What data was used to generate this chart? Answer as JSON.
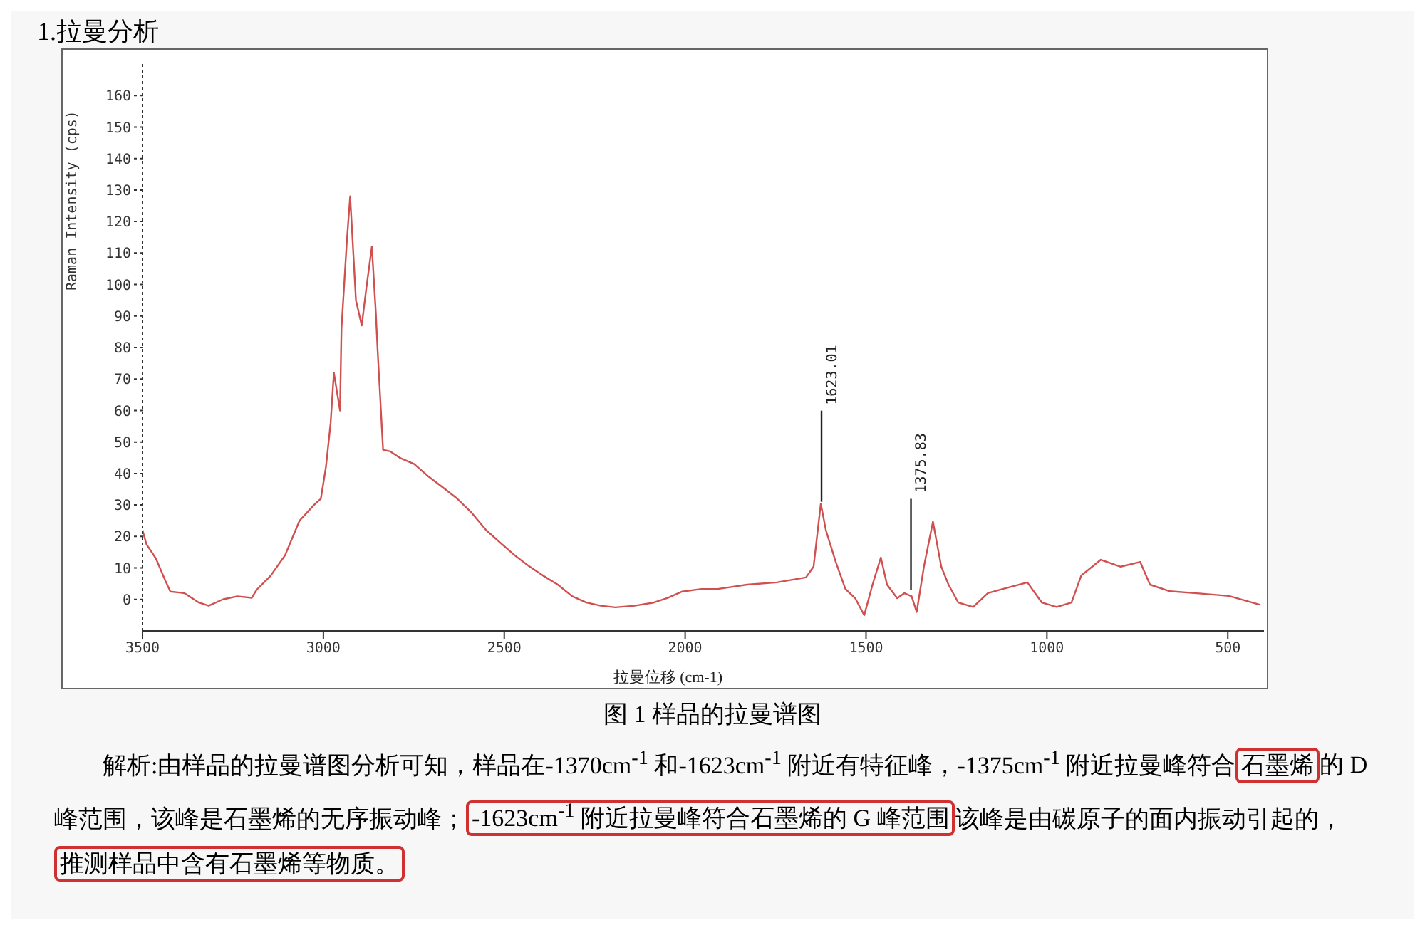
{
  "chart_data": {
    "type": "line",
    "title": "1.拉曼分析",
    "xlabel": "拉曼位移 (cm-1)",
    "ylabel": "Raman Intensity (cps)",
    "x": [
      3500,
      3489,
      3463,
      3437,
      3423,
      3384,
      3344,
      3317,
      3278,
      3238,
      3198,
      3185,
      3146,
      3106,
      3066,
      3026,
      3007,
      2993,
      2980,
      2971,
      2954,
      2950,
      2935,
      2926,
      2910,
      2894,
      2880,
      2866,
      2855,
      2850,
      2835,
      2815,
      2789,
      2749,
      2709,
      2669,
      2630,
      2590,
      2550,
      2511,
      2471,
      2431,
      2392,
      2352,
      2312,
      2273,
      2233,
      2193,
      2140,
      2087,
      2048,
      2008,
      1955,
      1910,
      1829,
      1747,
      1666,
      1645,
      1625,
      1611,
      1584,
      1557,
      1530,
      1505,
      1482,
      1459,
      1442,
      1414,
      1394,
      1374,
      1360,
      1340,
      1315,
      1292,
      1272,
      1245,
      1204,
      1163,
      1122,
      1054,
      1014,
      973,
      932,
      905,
      851,
      796,
      742,
      715,
      660,
      579,
      497,
      410
    ],
    "series": [
      {
        "color": "#d05050",
        "values": [
          22,
          17.5,
          13,
          6,
          2.5,
          2,
          -1,
          -2,
          0,
          1,
          0.5,
          3,
          7.5,
          14,
          25,
          30,
          32,
          42,
          56,
          72,
          60,
          86,
          114,
          128,
          95,
          87,
          100,
          112,
          91,
          79,
          47.5,
          47,
          45,
          43,
          39,
          35.5,
          32,
          27.5,
          22,
          18,
          14,
          10.5,
          7.5,
          4.7,
          1,
          -1,
          -2,
          -2.5,
          -2,
          -1,
          0.5,
          2.5,
          3.3,
          3.3,
          4.7,
          5.4,
          7,
          10.4,
          30.4,
          22,
          12,
          3.3,
          0.4,
          -5,
          4.7,
          13.3,
          4.7,
          0.4,
          2,
          1,
          -4,
          10.4,
          24.7,
          10.4,
          4.7,
          -1,
          -2.4,
          2,
          3.3,
          5.4,
          -1,
          -2.4,
          -1,
          7.6,
          12.6,
          10.4,
          11.9,
          4.7,
          2.6,
          1.9,
          1.1,
          -1.7
        ]
      }
    ],
    "xlim": [
      3500,
      400
    ],
    "xticks": [
      3500,
      3000,
      2500,
      2000,
      1500,
      1000,
      500
    ],
    "ylim": [
      -10,
      170
    ],
    "yticks": [
      0,
      10,
      20,
      30,
      40,
      50,
      60,
      70,
      80,
      90,
      100,
      110,
      120,
      130,
      140,
      150,
      160
    ],
    "grid": false,
    "marker": "none",
    "line_style": "solid",
    "annotations": [
      "图 1 样品的拉曼谱图",
      "解析:由样品的拉曼谱图分析可知，样品在-1370cm$^{-1}$ 和-1623cm$^{-1}$ 附近有特征峰，-1375cm$^{-1}$ 附近拉曼峰符合",
      "石墨烯",
      "的 D 峰范围，该峰是石墨烯的无序振动峰；",
      "-1623cm$^{-1}$ 附近拉曼峰符合石墨烯的 G 峰范围",
      "该峰是由碳原子的面内振动引起的，",
      "推测样品中含有石墨烯等物质。",
      {
        "text": "1623.01",
        "x": 1623.01,
        "y": 31
      },
      {
        "text": "1375.83",
        "x": 1375.83,
        "y": 3
      }
    ]
  }
}
